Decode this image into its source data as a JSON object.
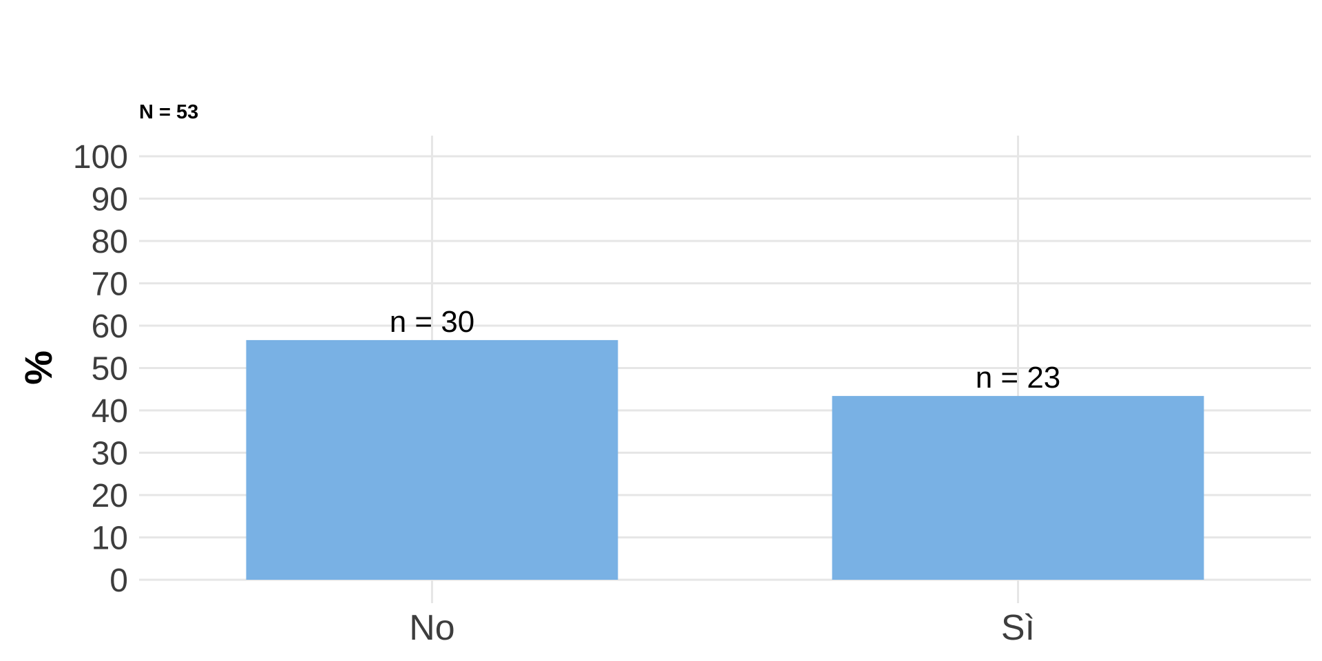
{
  "chart_data": {
    "type": "bar",
    "subtitle": "N = 53",
    "categories": [
      "No",
      "Sì"
    ],
    "values": [
      56.6,
      43.4
    ],
    "data_labels": [
      "n = 30",
      "n = 23"
    ],
    "ylabel": "%",
    "xlabel": "",
    "ylim": [
      0,
      100
    ],
    "yticks": [
      0,
      10,
      20,
      30,
      40,
      50,
      60,
      70,
      80,
      90,
      100
    ],
    "grid": true,
    "legend": "none",
    "colors": {
      "bar": "#79b1e4",
      "grid": "#e6e6e6"
    }
  }
}
